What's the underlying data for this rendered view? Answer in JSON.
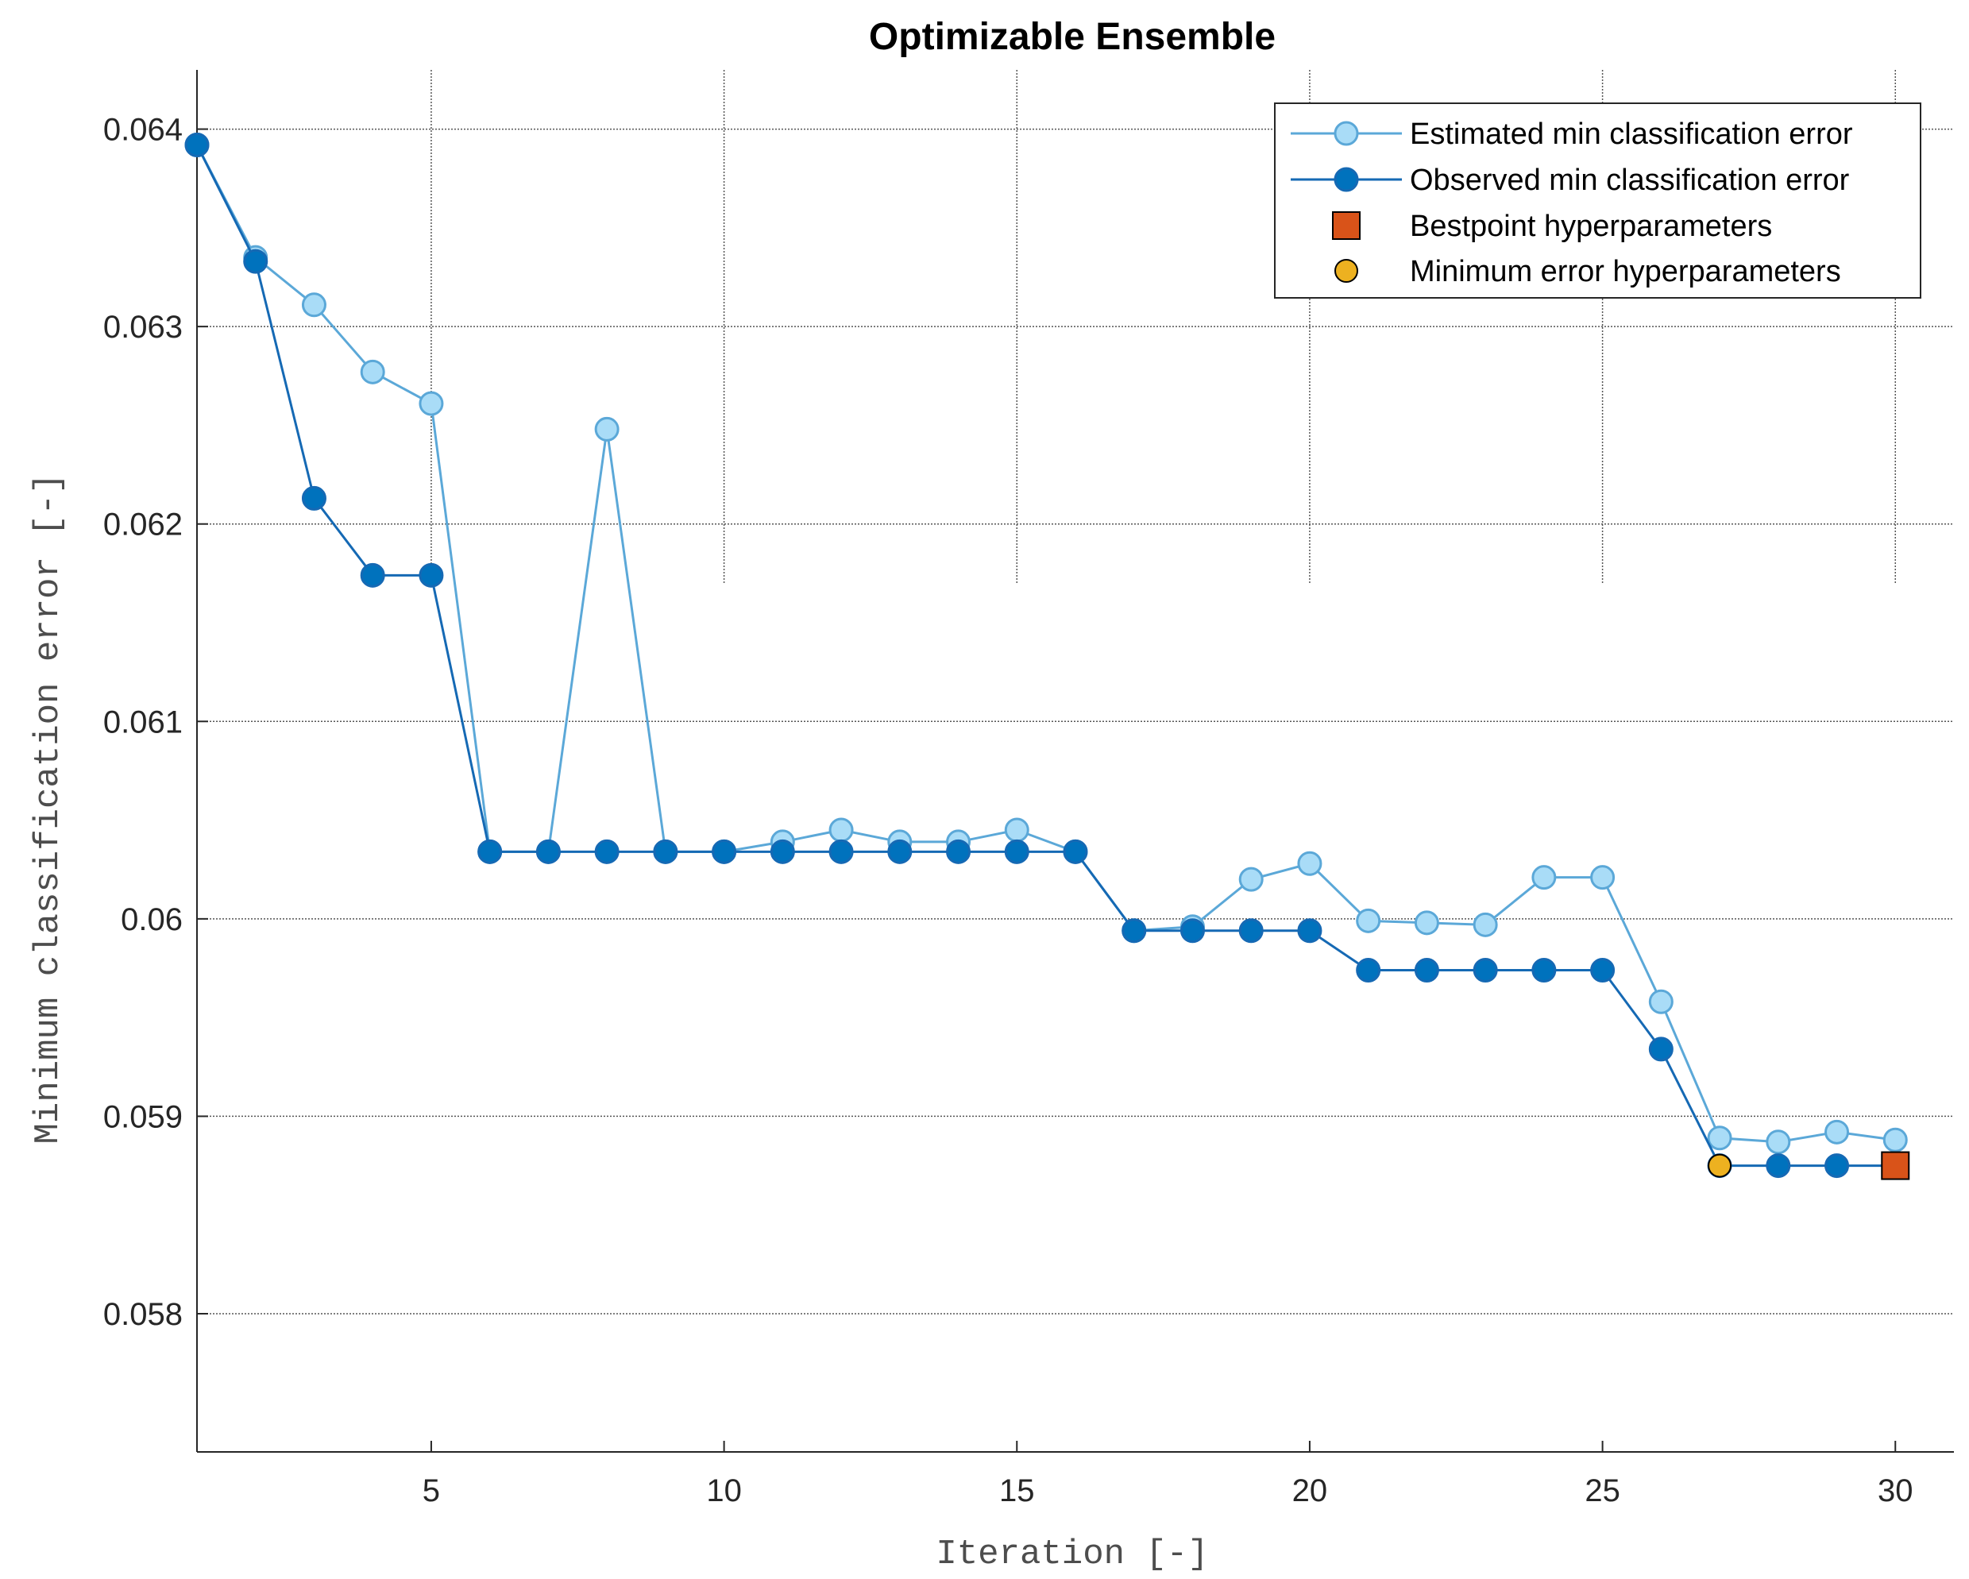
{
  "chart_data": {
    "type": "line",
    "title": "Optimizable Ensemble",
    "xlabel": "Iteration [-]",
    "ylabel": "Minimum classification error [-]",
    "xlim": [
      1,
      31
    ],
    "ylim": [
      0.0573,
      0.0643
    ],
    "xticks": [
      5,
      10,
      15,
      20,
      25,
      30
    ],
    "xtick_labels": [
      "5",
      "10",
      "15",
      "20",
      "25",
      "30"
    ],
    "yticks": [
      0.058,
      0.059,
      0.06,
      0.061,
      0.062,
      0.063,
      0.064
    ],
    "ytick_labels": [
      "0.058",
      "0.059",
      "0.06",
      "0.061",
      "0.062",
      "0.063",
      "0.064"
    ],
    "legend_position": "top-right",
    "x": [
      1,
      2,
      3,
      4,
      5,
      6,
      7,
      8,
      9,
      10,
      11,
      12,
      13,
      14,
      15,
      16,
      17,
      18,
      19,
      20,
      21,
      22,
      23,
      24,
      25,
      26,
      27,
      28,
      29,
      30
    ],
    "series": [
      {
        "name": "Estimated min classification error",
        "color": "#5ba8d8",
        "marker_fill": "#a9dcf7",
        "values": [
          0.06392,
          0.06335,
          0.06311,
          0.06277,
          0.06261,
          0.06034,
          0.06034,
          0.06248,
          0.06034,
          0.06034,
          0.06039,
          0.06045,
          0.06039,
          0.06039,
          0.06045,
          0.06034,
          0.05994,
          0.05996,
          0.0602,
          0.06028,
          0.05999,
          0.05998,
          0.05997,
          0.06021,
          0.06021,
          0.05958,
          0.05889,
          0.05887,
          0.05892,
          0.05888
        ]
      },
      {
        "name": "Observed min classification error",
        "color": "#1569b4",
        "marker_fill": "#0072bd",
        "values": [
          0.06392,
          0.06333,
          0.06213,
          0.06174,
          0.06174,
          0.06034,
          0.06034,
          0.06034,
          0.06034,
          0.06034,
          0.06034,
          0.06034,
          0.06034,
          0.06034,
          0.06034,
          0.06034,
          0.05994,
          0.05994,
          0.05994,
          0.05994,
          0.05974,
          0.05974,
          0.05974,
          0.05974,
          0.05974,
          0.05934,
          0.05875,
          0.05875,
          0.05875,
          0.05875
        ]
      }
    ],
    "markers": [
      {
        "name": "Bestpoint hyperparameters",
        "x": 30,
        "y": 0.05875,
        "shape": "square",
        "color": "#d95319"
      },
      {
        "name": "Minimum error hyperparameters",
        "x": 27,
        "y": 0.05875,
        "shape": "circle",
        "color": "#edb120"
      }
    ]
  }
}
